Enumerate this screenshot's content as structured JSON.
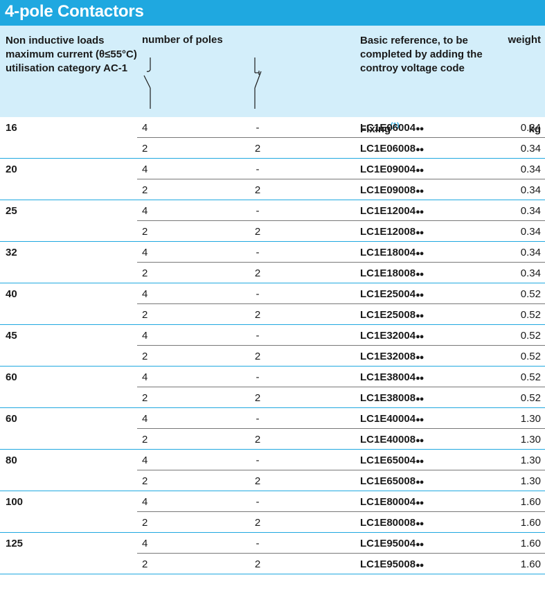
{
  "title": "4-pole Contactors",
  "header": {
    "col1": "Non inductive loads maximum current (θ≤55°C) utilisation category AC-1",
    "col2": "number of poles",
    "col4": "Basic reference, to be completed by adding the controy voltage code",
    "col5": "weight",
    "fixing": "Fixing",
    "fixing_note": "(1)",
    "unit": "kg"
  },
  "icons": {
    "no_contact": "normally-open-contact-icon",
    "nc_contact": "normally-closed-contact-icon"
  },
  "accent_color": "#1fa8e0",
  "header_bg": "#d3eefa",
  "rows": [
    {
      "current": "16",
      "r1": {
        "no": "4",
        "nc": "-",
        "ref": "LC1E06004",
        "w": "0.34"
      },
      "r2": {
        "no": "2",
        "nc": "2",
        "ref": "LC1E06008",
        "w": "0.34"
      }
    },
    {
      "current": "20",
      "r1": {
        "no": "4",
        "nc": "-",
        "ref": "LC1E09004",
        "w": "0.34"
      },
      "r2": {
        "no": "2",
        "nc": "2",
        "ref": "LC1E09008",
        "w": "0.34"
      }
    },
    {
      "current": "25",
      "r1": {
        "no": "4",
        "nc": "-",
        "ref": "LC1E12004",
        "w": "0.34"
      },
      "r2": {
        "no": "2",
        "nc": "2",
        "ref": "LC1E12008",
        "w": "0.34"
      }
    },
    {
      "current": "32",
      "r1": {
        "no": "4",
        "nc": "-",
        "ref": "LC1E18004",
        "w": "0.34"
      },
      "r2": {
        "no": "2",
        "nc": "2",
        "ref": "LC1E18008",
        "w": "0.34"
      }
    },
    {
      "current": "40",
      "r1": {
        "no": "4",
        "nc": "-",
        "ref": "LC1E25004",
        "w": "0.52"
      },
      "r2": {
        "no": "2",
        "nc": "2",
        "ref": "LC1E25008",
        "w": "0.52"
      }
    },
    {
      "current": "45",
      "r1": {
        "no": "4",
        "nc": "-",
        "ref": "LC1E32004",
        "w": "0.52"
      },
      "r2": {
        "no": "2",
        "nc": "2",
        "ref": "LC1E32008",
        "w": "0.52"
      }
    },
    {
      "current": "60",
      "r1": {
        "no": "4",
        "nc": "-",
        "ref": "LC1E38004",
        "w": "0.52"
      },
      "r2": {
        "no": "2",
        "nc": "2",
        "ref": "LC1E38008",
        "w": "0.52"
      }
    },
    {
      "current": "60",
      "r1": {
        "no": "4",
        "nc": "-",
        "ref": "LC1E40004",
        "w": "1.30"
      },
      "r2": {
        "no": "2",
        "nc": "2",
        "ref": "LC1E40008",
        "w": "1.30"
      }
    },
    {
      "current": "80",
      "r1": {
        "no": "4",
        "nc": "-",
        "ref": "LC1E65004",
        "w": "1.30"
      },
      "r2": {
        "no": "2",
        "nc": "2",
        "ref": "LC1E65008",
        "w": "1.30"
      }
    },
    {
      "current": "100",
      "r1": {
        "no": "4",
        "nc": "-",
        "ref": "LC1E80004",
        "w": "1.60"
      },
      "r2": {
        "no": "2",
        "nc": "2",
        "ref": "LC1E80008",
        "w": "1.60"
      }
    },
    {
      "current": "125",
      "r1": {
        "no": "4",
        "nc": "-",
        "ref": "LC1E95004",
        "w": "1.60"
      },
      "r2": {
        "no": "2",
        "nc": "2",
        "ref": "LC1E95008",
        "w": "1.60"
      }
    }
  ],
  "ref_suffix": "●●"
}
